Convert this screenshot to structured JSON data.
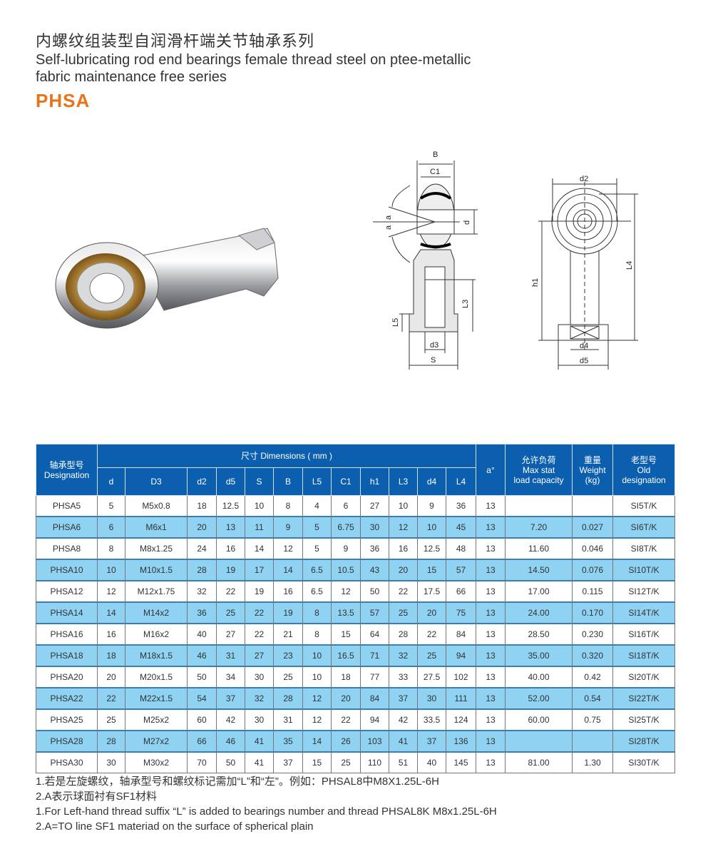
{
  "header": {
    "title_cn": "内螺纹组装型自润滑杆端关节轴承系列",
    "title_en_line1": "Self-lubricating rod end bearings female thread steel on ptee-metallic",
    "title_en_line2": "fabric maintenance free series",
    "model": "PHSA",
    "model_color": "#e8731a"
  },
  "drawing": {
    "labels": {
      "B": "B",
      "C1": "C1",
      "a1": "a",
      "a2": "a",
      "d": "d",
      "L3": "L3",
      "L5": "L5",
      "d3": "d3",
      "S": "S",
      "d2": "d2",
      "h1": "h1",
      "L4": "L4",
      "d4": "d4",
      "d5": "d5"
    }
  },
  "table": {
    "header_color": "#0b5fae",
    "alt_row_color": "#8fd2f2",
    "designation_cn": "轴承型号",
    "designation_en": "Designation",
    "dimensions": "尺寸 Dimensions ( mm )",
    "alpha": "a°",
    "load_cn": "允许负荷",
    "load_en1": "Max stat",
    "load_en2": "load capacity",
    "weight_cn": "重量",
    "weight_en1": "Weight",
    "weight_en2": "(kg)",
    "old_cn": "老型号",
    "old_en1": "Old",
    "old_en2": "designation",
    "dim_cols": [
      "d",
      "D3",
      "d2",
      "d5",
      "S",
      "B",
      "L5",
      "C1",
      "h1",
      "L3",
      "d4",
      "L4"
    ],
    "rows": [
      [
        "PHSA5",
        "5",
        "M5x0.8",
        "18",
        "12.5",
        "10",
        "8",
        "4",
        "6",
        "27",
        "10",
        "9",
        "36",
        "13",
        "",
        "",
        "SI5T/K"
      ],
      [
        "PHSA6",
        "6",
        "M6x1",
        "20",
        "13",
        "11",
        "9",
        "5",
        "6.75",
        "30",
        "12",
        "10",
        "45",
        "13",
        "7.20",
        "0.027",
        "SI6T/K"
      ],
      [
        "PHSA8",
        "8",
        "M8x1.25",
        "24",
        "16",
        "14",
        "12",
        "5",
        "9",
        "36",
        "16",
        "12.5",
        "48",
        "13",
        "11.60",
        "0.046",
        "SI8T/K"
      ],
      [
        "PHSA10",
        "10",
        "M10x1.5",
        "28",
        "19",
        "17",
        "14",
        "6.5",
        "10.5",
        "43",
        "20",
        "15",
        "57",
        "13",
        "14.50",
        "0.076",
        "SI10T/K"
      ],
      [
        "PHSA12",
        "12",
        "M12x1.75",
        "32",
        "22",
        "19",
        "16",
        "6.5",
        "12",
        "50",
        "22",
        "17.5",
        "66",
        "13",
        "17.00",
        "0.115",
        "SI12T/K"
      ],
      [
        "PHSA14",
        "14",
        "M14x2",
        "36",
        "25",
        "22",
        "19",
        "8",
        "13.5",
        "57",
        "25",
        "20",
        "75",
        "13",
        "24.00",
        "0.170",
        "SI14T/K"
      ],
      [
        "PHSA16",
        "16",
        "M16x2",
        "40",
        "27",
        "22",
        "21",
        "8",
        "15",
        "64",
        "28",
        "22",
        "84",
        "13",
        "28.50",
        "0.230",
        "SI16T/K"
      ],
      [
        "PHSA18",
        "18",
        "M18x1.5",
        "46",
        "31",
        "27",
        "23",
        "10",
        "16.5",
        "71",
        "32",
        "25",
        "94",
        "13",
        "35.00",
        "0.320",
        "SI18T/K"
      ],
      [
        "PHSA20",
        "20",
        "M20x1.5",
        "50",
        "34",
        "30",
        "25",
        "10",
        "18",
        "77",
        "33",
        "27.5",
        "102",
        "13",
        "40.00",
        "0.42",
        "SI20T/K"
      ],
      [
        "PHSA22",
        "22",
        "M22x1.5",
        "54",
        "37",
        "32",
        "28",
        "12",
        "20",
        "84",
        "37",
        "30",
        "111",
        "13",
        "52.00",
        "0.54",
        "SI22T/K"
      ],
      [
        "PHSA25",
        "25",
        "M25x2",
        "60",
        "42",
        "30",
        "31",
        "12",
        "22",
        "94",
        "42",
        "33.5",
        "124",
        "13",
        "60.00",
        "0.75",
        "SI25T/K"
      ],
      [
        "PHSA28",
        "28",
        "M27x2",
        "66",
        "46",
        "41",
        "35",
        "14",
        "26",
        "103",
        "41",
        "37",
        "136",
        "13",
        "",
        "",
        "SI28T/K"
      ],
      [
        "PHSA30",
        "30",
        "M30x2",
        "70",
        "50",
        "41",
        "37",
        "15",
        "25",
        "110",
        "51",
        "40",
        "145",
        "13",
        "81.00",
        "1.30",
        "SI30T/K"
      ]
    ]
  },
  "notes": [
    "1.若是左旋螺纹，轴承型号和螺纹标记需加“L”和“左”。例如：PHSAL8中M8X1.25L-6H",
    "2.A表示球面衬有SF1材料",
    "1.For Left-hand thread suffix “L” is added to bearings number and thread PHSAL8K M8x1.25L-6H",
    "2.A=TO line SF1 materiad on the surface of spherical plain"
  ]
}
